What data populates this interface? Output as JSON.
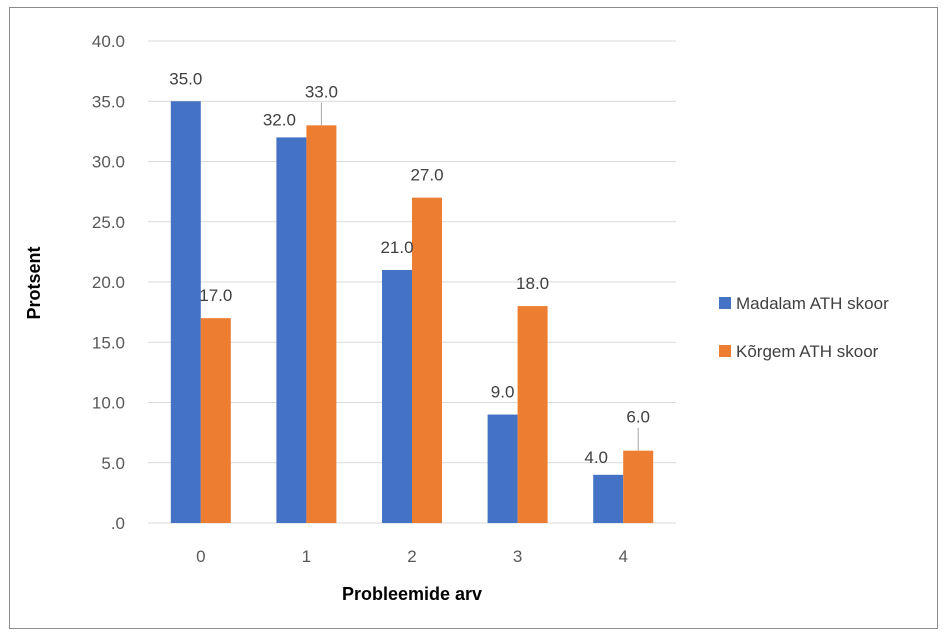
{
  "chart_data": {
    "type": "bar",
    "title": "",
    "xlabel": "Probleemide arv",
    "ylabel": "Protsent",
    "categories": [
      "0",
      "1",
      "2",
      "3",
      "4"
    ],
    "series": [
      {
        "name": "Madalam ATH skoor",
        "color": "#4472C4",
        "values": [
          35.0,
          32.0,
          21.0,
          9.0,
          4.0
        ],
        "labels": [
          "35.0",
          "32.0",
          "21.0",
          "9.0",
          "4.0"
        ]
      },
      {
        "name": "Kõrgem ATH skoor",
        "color": "#ED7D31",
        "values": [
          17.0,
          33.0,
          27.0,
          18.0,
          6.0
        ],
        "labels": [
          "17.0",
          "33.0",
          "27.0",
          "18.0",
          "6.0"
        ]
      }
    ],
    "ylim": [
      0,
      40
    ],
    "yticks": [
      ".0",
      "5.0",
      "10.0",
      "15.0",
      "20.0",
      "25.0",
      "30.0",
      "35.0",
      "40.0"
    ],
    "grid": true,
    "legend_position": "right"
  }
}
